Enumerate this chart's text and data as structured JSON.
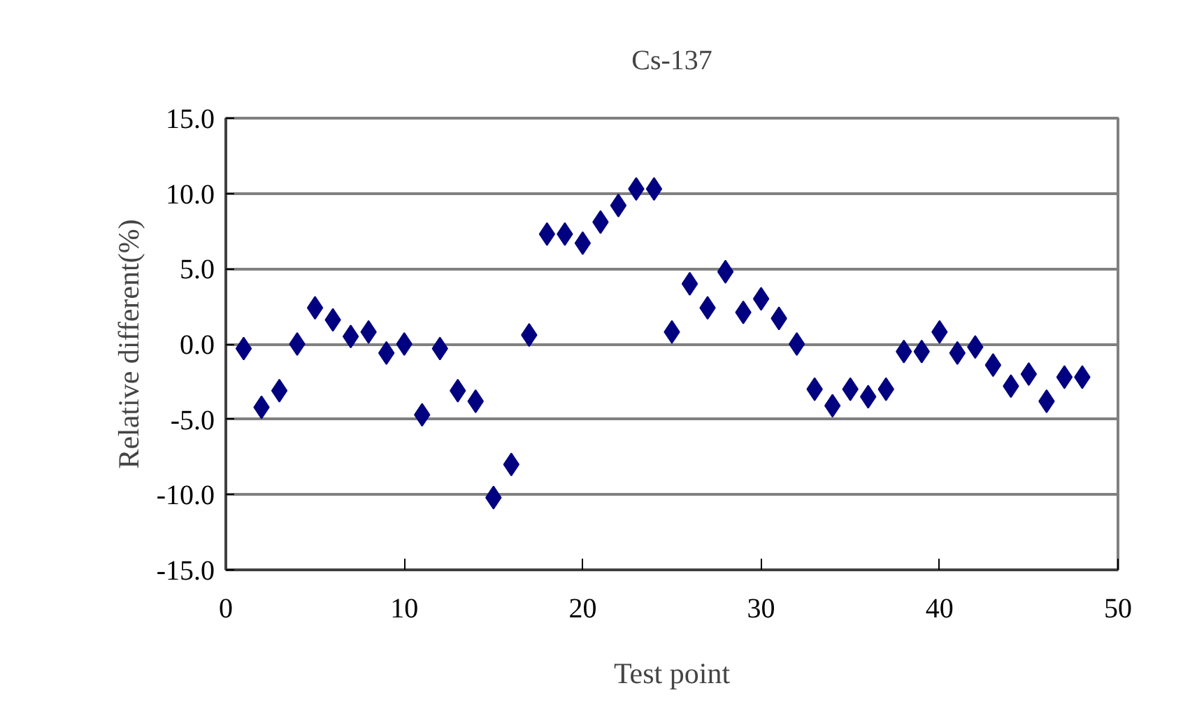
{
  "chart_data": {
    "type": "scatter",
    "title": "Cs-137",
    "xlabel": "Test point",
    "ylabel": "Relative different(%)",
    "x": [
      1,
      2,
      3,
      4,
      5,
      6,
      7,
      8,
      9,
      10,
      11,
      12,
      13,
      14,
      15,
      16,
      17,
      18,
      19,
      20,
      21,
      22,
      23,
      24,
      25,
      26,
      27,
      28,
      29,
      30,
      31,
      32,
      33,
      34,
      35,
      36,
      37,
      38,
      39,
      40,
      41,
      42,
      43,
      44,
      45,
      46,
      47,
      48
    ],
    "series": [
      {
        "color": "#000080",
        "values": [
          -0.3,
          -4.2,
          -3.1,
          0.0,
          2.4,
          1.6,
          0.5,
          0.8,
          -0.6,
          0.0,
          -4.7,
          -0.3,
          -3.1,
          -3.8,
          -10.2,
          -8.0,
          0.6,
          7.3,
          7.3,
          6.7,
          8.1,
          9.2,
          10.3,
          10.3,
          0.8,
          4.0,
          2.4,
          4.8,
          2.1,
          3.0,
          1.7,
          0.0,
          -3.0,
          -4.1,
          -3.0,
          -3.5,
          -3.0,
          -0.5,
          -0.5,
          0.8,
          -0.6,
          -0.2,
          -1.4,
          -2.8,
          -2.0,
          -3.8,
          -2.2,
          -2.2
        ]
      }
    ],
    "xlim": [
      0,
      50
    ],
    "xticks": [
      0,
      10,
      20,
      30,
      40,
      50
    ],
    "ylim": [
      -15,
      15
    ],
    "yticks": [
      {
        "value": -15,
        "label": "-15.0"
      },
      {
        "value": -10,
        "label": "-10.0"
      },
      {
        "value": -5,
        "label": "-5.0"
      },
      {
        "value": 0,
        "label": "0.0"
      },
      {
        "value": 5,
        "label": "5.0"
      },
      {
        "value": 10,
        "label": "10.0"
      },
      {
        "value": 15,
        "label": "15.0"
      }
    ],
    "grid": "y",
    "marker": "diamond"
  }
}
